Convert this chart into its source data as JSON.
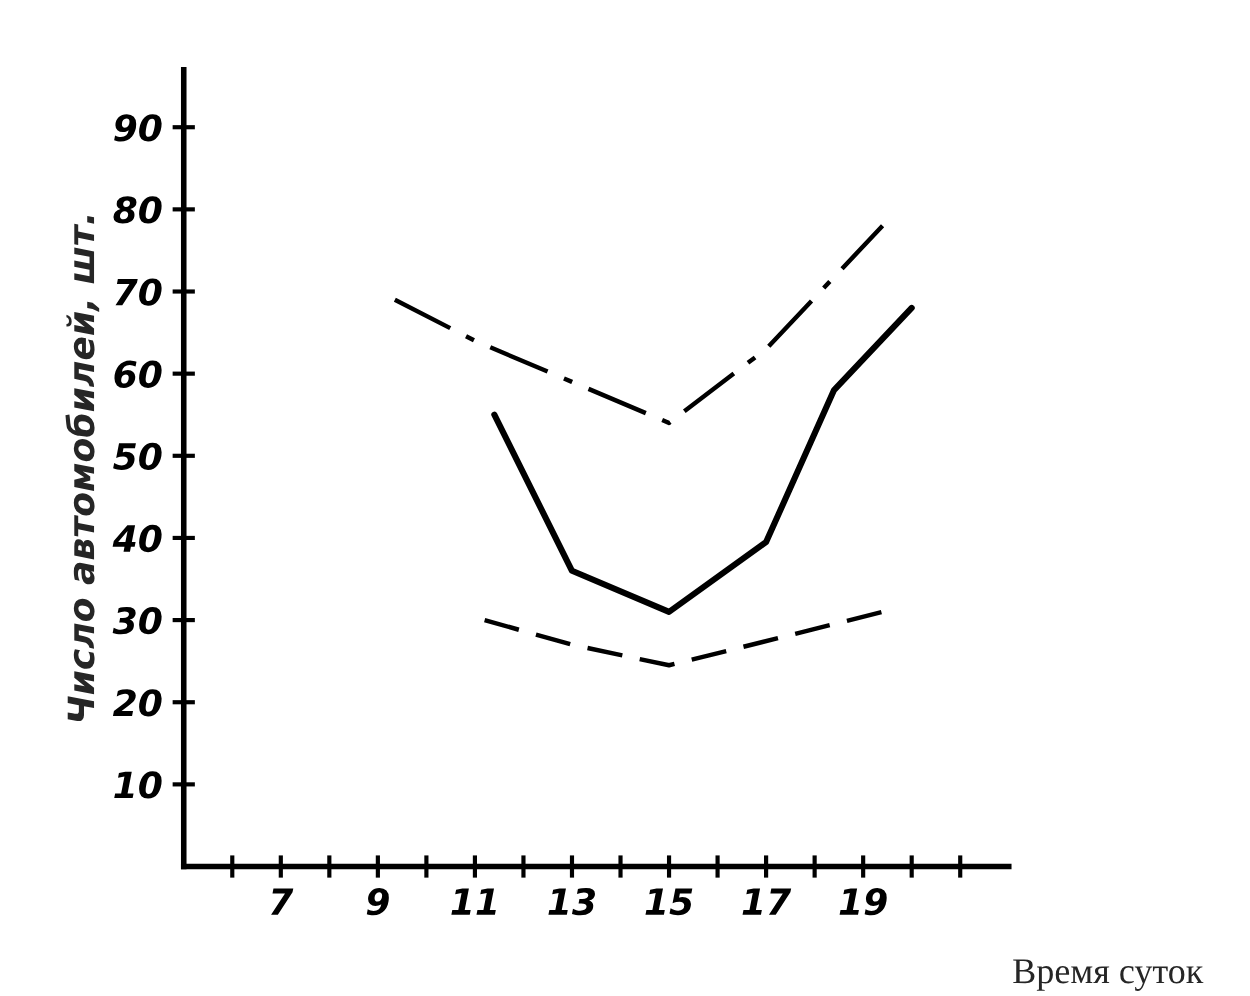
{
  "chart_data": {
    "type": "line",
    "xlabel": "Время суток",
    "ylabel": "Число автомобилей, шт.",
    "xlim": [
      5,
      22
    ],
    "ylim": [
      0,
      97
    ],
    "xticks": [
      {
        "value": 6,
        "label": null
      },
      7,
      {
        "value": 8,
        "label": null
      },
      9,
      {
        "value": 10,
        "label": null
      },
      11,
      {
        "value": 12,
        "label": null
      },
      13,
      {
        "value": 14,
        "label": null
      },
      15,
      {
        "value": 16,
        "label": null
      },
      17,
      {
        "value": 18,
        "label": null
      },
      19,
      {
        "value": 20,
        "label": null
      },
      {
        "value": 21,
        "label": null
      }
    ],
    "yticks": [
      10,
      20,
      30,
      40,
      50,
      60,
      70,
      80,
      90
    ],
    "grid": false,
    "legend": false,
    "marker": "none",
    "series": [
      {
        "color": "#000000",
        "line_style": "dashdot",
        "x": [
          9.35,
          11,
          13,
          15,
          17,
          19.4
        ],
        "values": [
          69,
          64,
          59,
          54,
          63,
          78
        ]
      },
      {
        "color": "#000000",
        "line_style": "solid",
        "x": [
          11.4,
          13,
          15,
          17,
          18.4,
          20
        ],
        "values": [
          55,
          36,
          31,
          39.5,
          58,
          68
        ]
      },
      {
        "color": "#000000",
        "line_style": "dashed",
        "x": [
          11.2,
          13,
          15,
          16.7,
          19.4
        ],
        "values": [
          30,
          27,
          24.5,
          27,
          31
        ]
      }
    ]
  }
}
